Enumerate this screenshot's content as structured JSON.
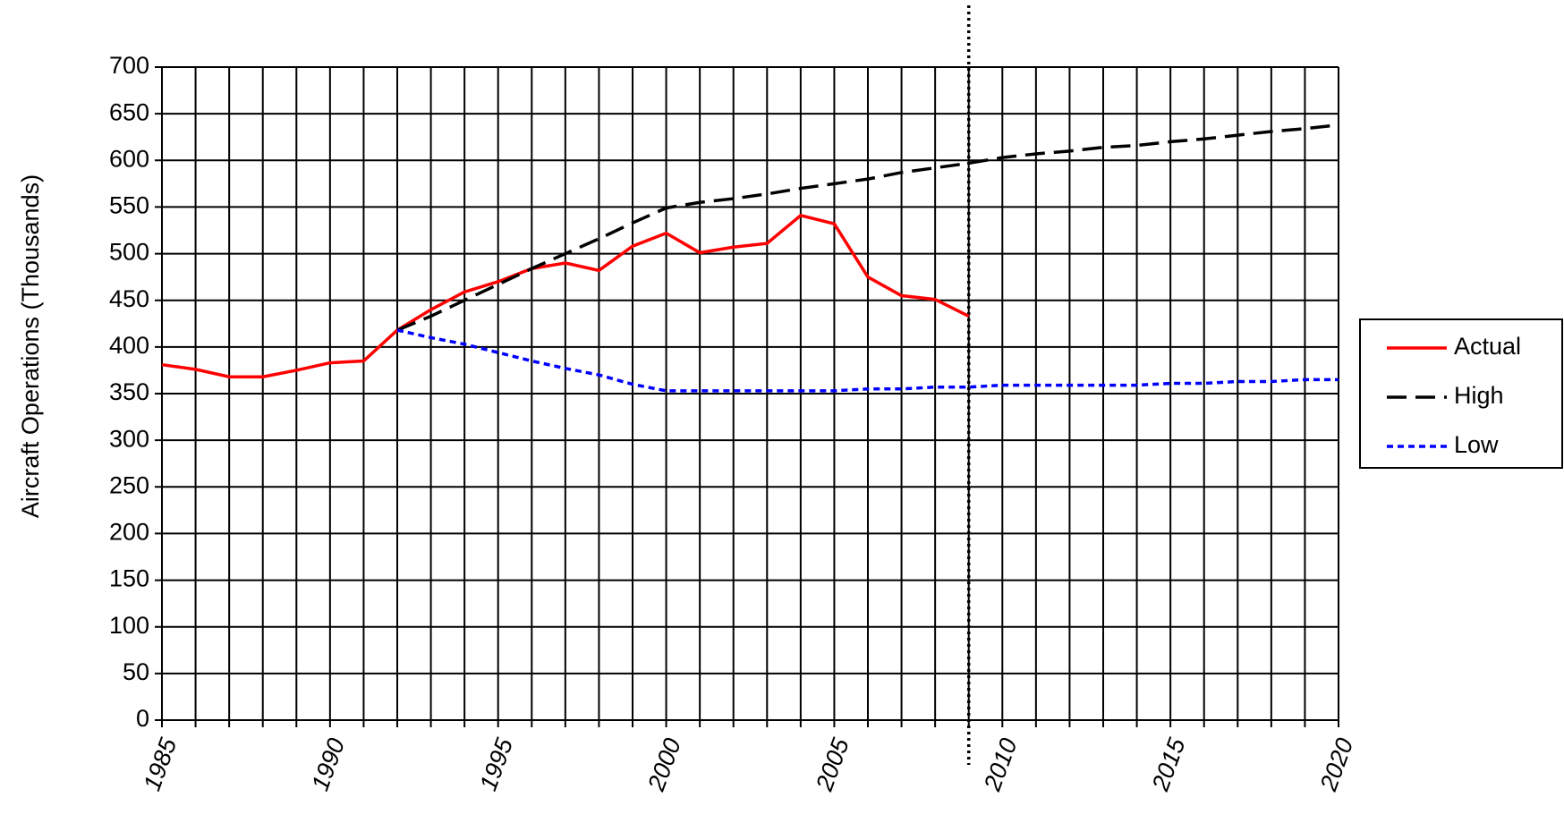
{
  "chart_data": {
    "type": "line",
    "y_label": "Aircraft Operations (Thousands)",
    "x": [
      1985,
      1986,
      1987,
      1988,
      1989,
      1990,
      1991,
      1992,
      1993,
      1994,
      1995,
      1996,
      1997,
      1998,
      1999,
      2000,
      2001,
      2002,
      2003,
      2004,
      2005,
      2006,
      2007,
      2008,
      2009,
      2010,
      2011,
      2012,
      2013,
      2014,
      2015,
      2016,
      2017,
      2018,
      2019,
      2020
    ],
    "series": [
      {
        "name": "Actual",
        "color": "#ff0000",
        "style": "solid",
        "values": [
          381,
          376,
          368,
          368,
          375,
          383,
          385,
          418,
          440,
          459,
          470,
          484,
          490,
          482,
          508,
          522,
          501,
          507,
          511,
          541,
          532,
          475,
          455,
          451,
          433,
          null,
          null,
          null,
          null,
          null,
          null,
          null,
          null,
          null,
          null,
          null
        ]
      },
      {
        "name": "High",
        "color": "#000000",
        "style": "dashed",
        "values": [
          null,
          null,
          null,
          null,
          null,
          null,
          null,
          418,
          433,
          450,
          467,
          484,
          500,
          516,
          533,
          549,
          555,
          559,
          564,
          570,
          575,
          580,
          587,
          592,
          597,
          603,
          607,
          610,
          614,
          616,
          620,
          623,
          627,
          631,
          634,
          638
        ]
      },
      {
        "name": "Low",
        "color": "#0000ff",
        "style": "dotted",
        "values": [
          null,
          null,
          null,
          null,
          null,
          null,
          null,
          418,
          410,
          403,
          394,
          385,
          377,
          370,
          360,
          353,
          353,
          353,
          353,
          353,
          353,
          355,
          355,
          357,
          357,
          359,
          359,
          359,
          359,
          359,
          361,
          361,
          363,
          363,
          365,
          365
        ]
      }
    ],
    "xlim": [
      1985,
      2020
    ],
    "xticks": [
      1985,
      1990,
      1995,
      2000,
      2005,
      2010,
      2015,
      2020
    ],
    "ylim": [
      0,
      700
    ],
    "yticks": [
      0,
      50,
      100,
      150,
      200,
      250,
      300,
      350,
      400,
      450,
      500,
      550,
      600,
      650,
      700
    ],
    "grid": true,
    "marker_x": 2009,
    "legend": "right"
  }
}
